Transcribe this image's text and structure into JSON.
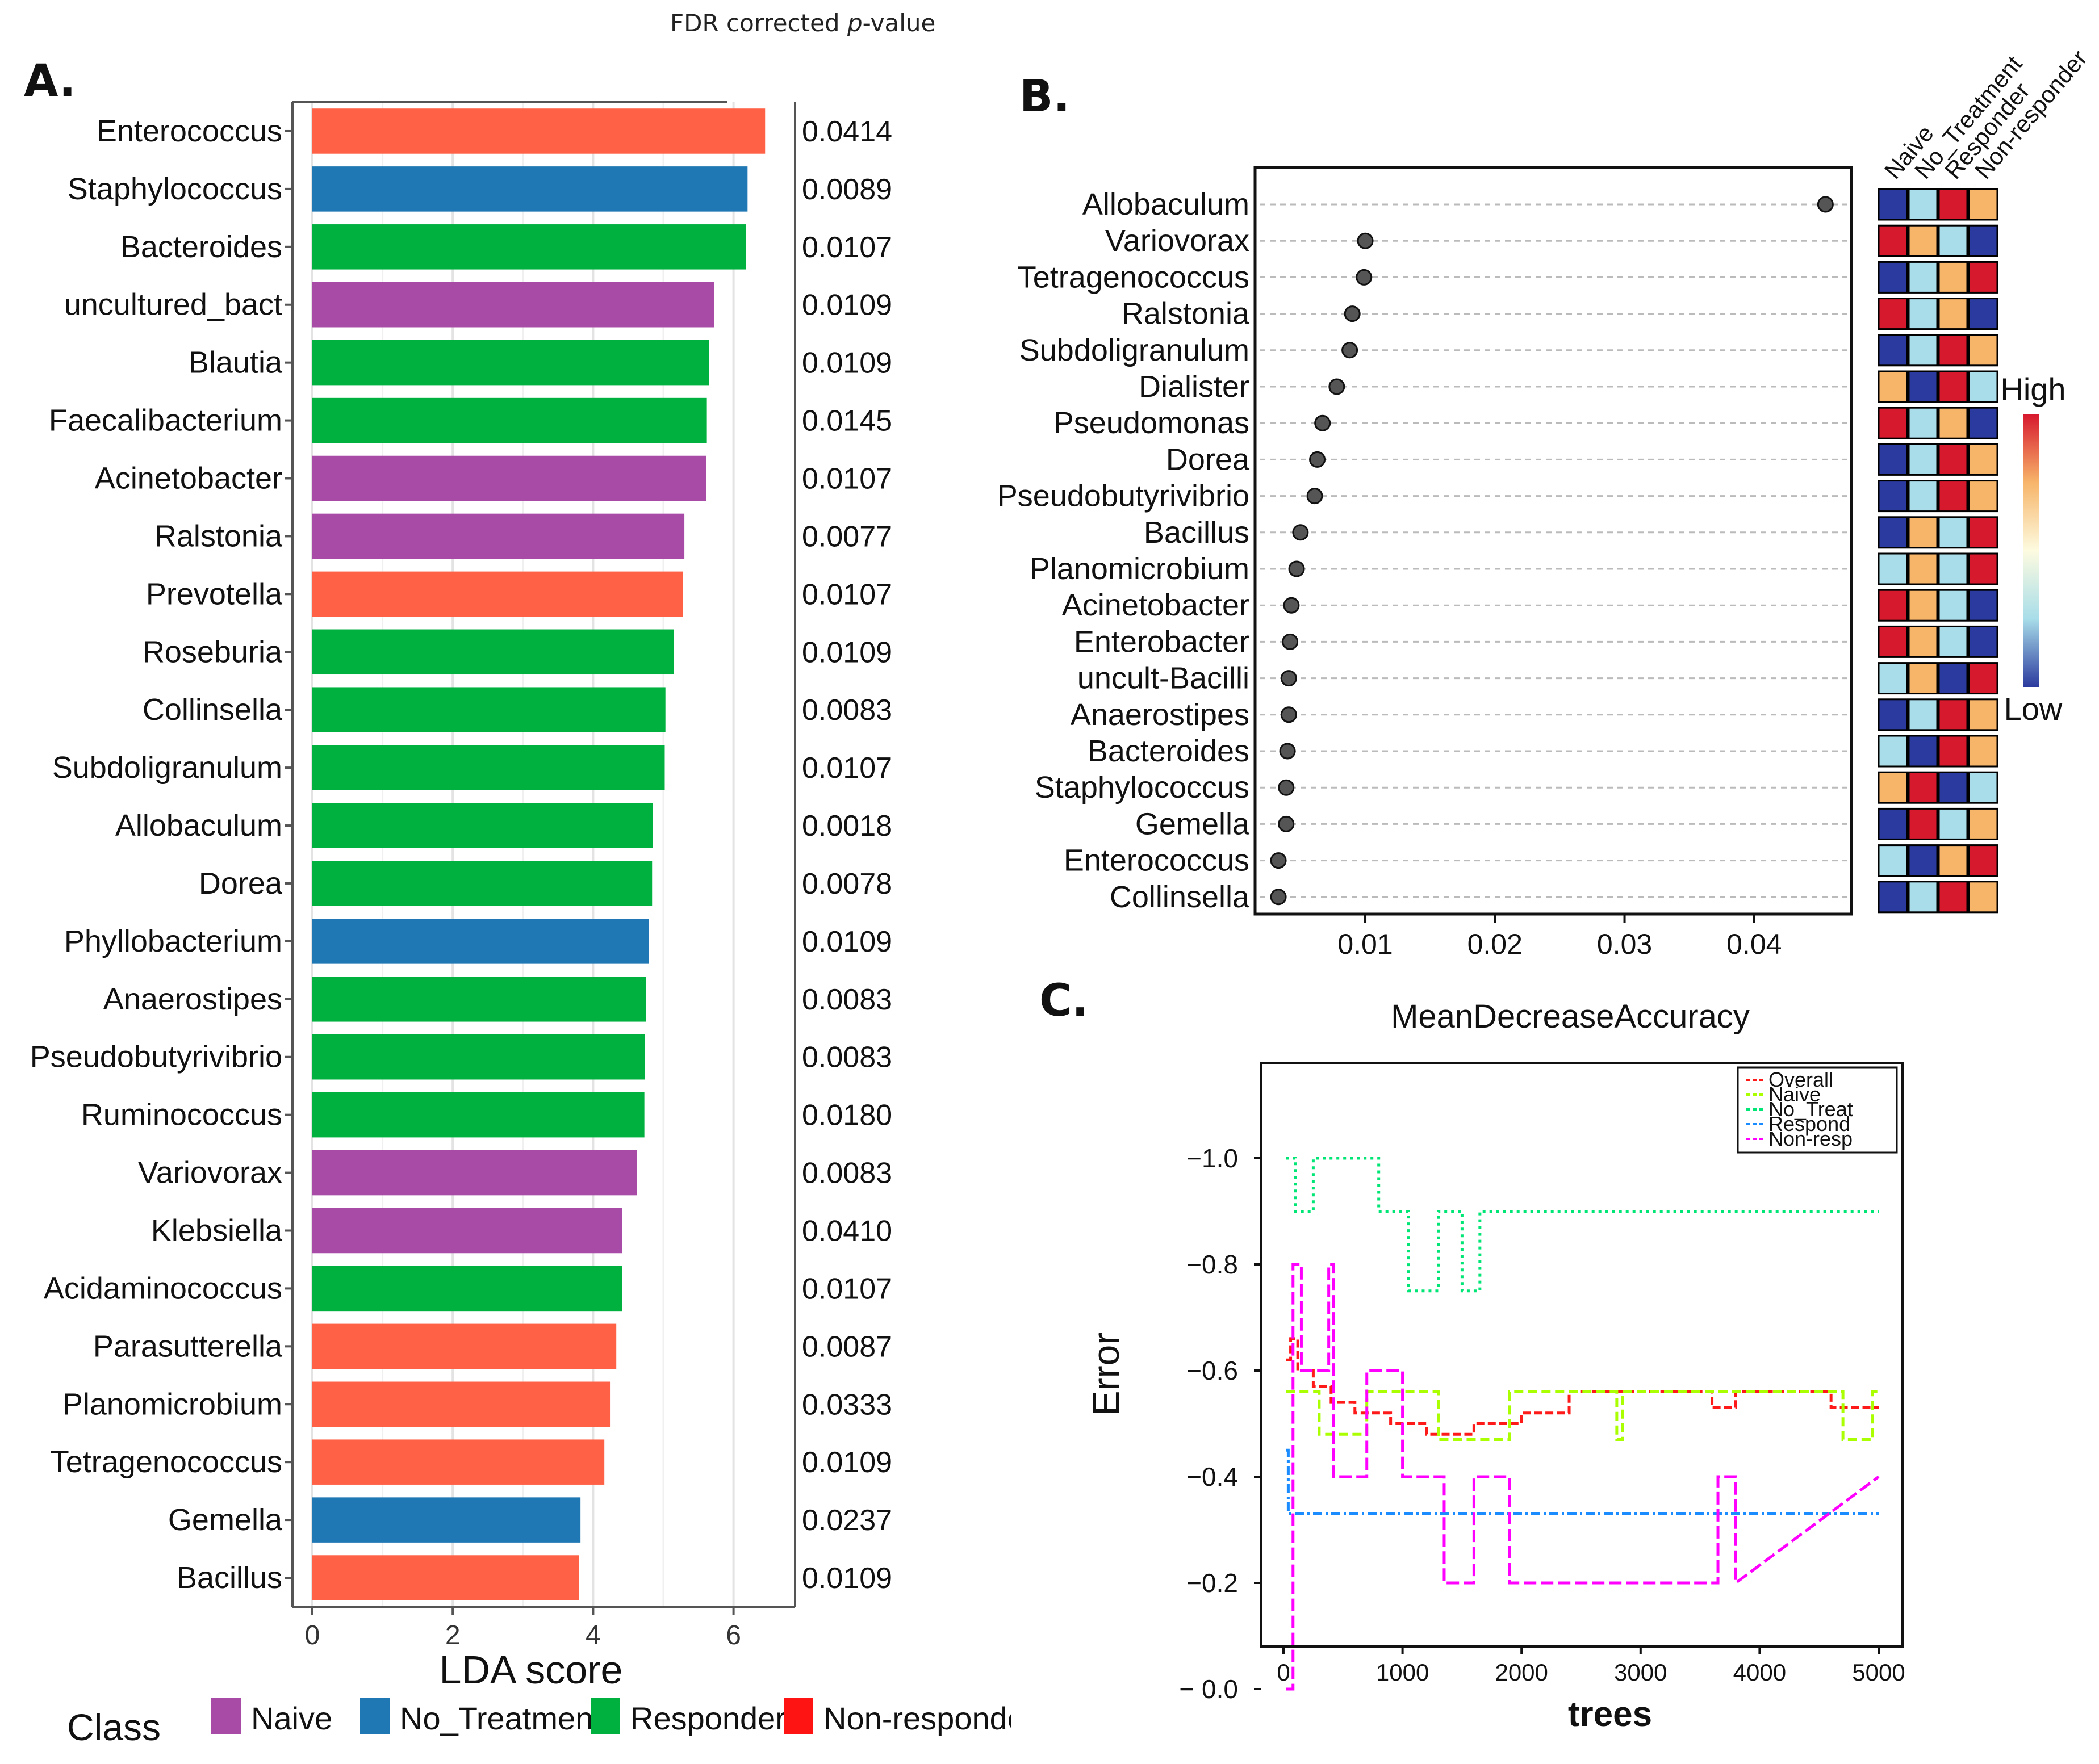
{
  "header": {
    "fdr_title_prefix": "FDR corrected ",
    "fdr_title_italic": "p",
    "fdr_title_suffix": "-value"
  },
  "panels": {
    "a": "A.",
    "b": "B.",
    "c": "C."
  },
  "class_colors": {
    "Naive": "#a84ba7",
    "No_Treatment": "#1f77b4",
    "Responder": "#00b140",
    "Non-responder": "#ff6146"
  },
  "chart_data": [
    {
      "id": "A",
      "type": "bar",
      "orientation": "horizontal",
      "xlabel": "LDA score",
      "xlim": [
        0,
        7
      ],
      "xticks": [
        0,
        2,
        4,
        6
      ],
      "categories": [
        "Enterococcus",
        "Staphylococcus",
        "Bacteroides",
        "uncultured_bact",
        "Blautia",
        "Faecalibacterium",
        "Acinetobacter",
        "Ralstonia",
        "Prevotella",
        "Roseburia",
        "Collinsella",
        "Subdoligranulum",
        "Allobaculum",
        "Dorea",
        "Phyllobacterium",
        "Anaerostipes",
        "Pseudobutyrivibrio",
        "Ruminococcus",
        "Variovorax",
        "Klebsiella",
        "Acidaminococcus",
        "Parasutterella",
        "Planomicrobium",
        "Tetragenococcus",
        "Gemella",
        "Bacillus"
      ],
      "values": [
        6.45,
        6.2,
        6.18,
        5.72,
        5.65,
        5.62,
        5.61,
        5.3,
        5.28,
        5.15,
        5.03,
        5.02,
        4.85,
        4.84,
        4.79,
        4.75,
        4.74,
        4.73,
        4.62,
        4.41,
        4.41,
        4.33,
        4.24,
        4.16,
        3.82,
        3.8
      ],
      "classes": [
        "Non-responder",
        "No_Treatment",
        "Responder",
        "Naive",
        "Responder",
        "Responder",
        "Naive",
        "Naive",
        "Non-responder",
        "Responder",
        "Responder",
        "Responder",
        "Responder",
        "Responder",
        "No_Treatment",
        "Responder",
        "Responder",
        "Responder",
        "Naive",
        "Naive",
        "Responder",
        "Non-responder",
        "Non-responder",
        "Non-responder",
        "No_Treatment",
        "Non-responder"
      ],
      "fdr_pvalues": [
        "0.0414",
        "0.0089",
        "0.0107",
        "0.0109",
        "0.0109",
        "0.0145",
        "0.0107",
        "0.0077",
        "0.0107",
        "0.0109",
        "0.0083",
        "0.0107",
        "0.0018",
        "0.0078",
        "0.0109",
        "0.0083",
        "0.0083",
        "0.0180",
        "0.0083",
        "0.0410",
        "0.0107",
        "0.0087",
        "0.0333",
        "0.0109",
        "0.0237",
        "0.0109"
      ],
      "legend": {
        "title": "Class",
        "items": [
          "Naive",
          "No_Treatment",
          "Responder",
          "Non-responder"
        ]
      }
    },
    {
      "id": "B",
      "type": "scatter",
      "subtype": "dotplot",
      "xlabel": "MeanDecreaseAccuracy",
      "xlim": [
        0.0015,
        0.0475
      ],
      "xticks": [
        "0.01",
        "0.02",
        "0.03",
        "0.04"
      ],
      "xtick_values": [
        0.01,
        0.02,
        0.03,
        0.04
      ],
      "categories": [
        "Allobaculum",
        "Variovorax",
        "Tetragenococcus",
        "Ralstonia",
        "Subdoligranulum",
        "Dialister",
        "Pseudomonas",
        "Dorea",
        "Pseudobutyrivibrio",
        "Bacillus",
        "Planomicrobium",
        "Acinetobacter",
        "Enterobacter",
        "uncult-Bacilli",
        "Anaerostipes",
        "Bacteroides",
        "Staphylococcus",
        "Gemella",
        "Enterococcus",
        "Collinsella"
      ],
      "values": [
        0.0455,
        0.01,
        0.0099,
        0.009,
        0.0088,
        0.0078,
        0.0067,
        0.0063,
        0.0061,
        0.005,
        0.0047,
        0.0043,
        0.0042,
        0.0041,
        0.0041,
        0.004,
        0.0039,
        0.0039,
        0.0033,
        0.0033
      ],
      "heatmap": {
        "columns": [
          "Naive",
          "No_Treatment",
          "Responder",
          "Non-responder"
        ],
        "levels": {
          "1": "#2b3a9e",
          "2": "#a8dde9",
          "3": "#f7b56a",
          "4": "#d7192e"
        },
        "rows": [
          [
            1,
            2,
            4,
            3
          ],
          [
            4,
            3,
            2,
            1
          ],
          [
            1,
            2,
            3,
            4
          ],
          [
            4,
            2,
            3,
            1
          ],
          [
            1,
            2,
            4,
            3
          ],
          [
            3,
            1,
            4,
            2
          ],
          [
            4,
            2,
            3,
            1
          ],
          [
            1,
            2,
            4,
            3
          ],
          [
            1,
            2,
            4,
            3
          ],
          [
            1,
            3,
            2,
            4
          ],
          [
            2,
            3,
            2,
            4
          ],
          [
            4,
            3,
            2,
            1
          ],
          [
            4,
            3,
            2,
            1
          ],
          [
            2,
            3,
            1,
            4
          ],
          [
            1,
            2,
            4,
            3
          ],
          [
            2,
            1,
            4,
            3
          ],
          [
            3,
            4,
            1,
            2
          ],
          [
            1,
            4,
            2,
            3
          ],
          [
            2,
            1,
            3,
            4
          ],
          [
            1,
            2,
            4,
            3
          ]
        ],
        "colorbar_high": "High",
        "colorbar_low": "Low"
      }
    },
    {
      "id": "C",
      "type": "line",
      "xlabel": "trees",
      "ylabel": "Error",
      "xlim": [
        0,
        5000
      ],
      "ylim": [
        0.0,
        1.0
      ],
      "xticks": [
        "0",
        "1000",
        "2000",
        "3000",
        "4000",
        "5000"
      ],
      "yticks": [
        "−1.0",
        "−0.8",
        "−0.6",
        "−0.4",
        "−0.2",
        "− 0.0"
      ],
      "ytick_values": [
        1.0,
        0.8,
        0.6,
        0.4,
        0.2,
        0.0
      ],
      "legend": [
        "Overall",
        "Naive",
        "No_Treat",
        "Respond",
        "Non-resp"
      ],
      "series": [
        {
          "name": "Overall",
          "color": "#ff1a1a",
          "dash": "14 6",
          "x": [
            20,
            60,
            60,
            120,
            120,
            250,
            250,
            400,
            400,
            600,
            600,
            900,
            900,
            1200,
            1200,
            1600,
            1600,
            2000,
            2000,
            2400,
            2400,
            3000,
            3000,
            3600,
            3600,
            3800,
            3800,
            4600,
            4600,
            5000
          ],
          "y": [
            0.62,
            0.62,
            0.66,
            0.66,
            0.6,
            0.6,
            0.57,
            0.57,
            0.54,
            0.54,
            0.52,
            0.52,
            0.5,
            0.5,
            0.48,
            0.48,
            0.5,
            0.5,
            0.52,
            0.52,
            0.56,
            0.56,
            0.56,
            0.56,
            0.53,
            0.53,
            0.56,
            0.56,
            0.53,
            0.53
          ]
        },
        {
          "name": "Naive",
          "color": "#aaff00",
          "dash": "16 8",
          "x": [
            20,
            300,
            300,
            700,
            700,
            1300,
            1300,
            1900,
            1900,
            2800,
            2800,
            2850,
            2850,
            4700,
            4700,
            4950,
            4950,
            5000
          ],
          "y": [
            0.56,
            0.56,
            0.48,
            0.48,
            0.56,
            0.56,
            0.47,
            0.47,
            0.56,
            0.56,
            0.47,
            0.47,
            0.56,
            0.56,
            0.47,
            0.47,
            0.56,
            0.56
          ]
        },
        {
          "name": "No_Treat",
          "color": "#00e676",
          "dash": "5 7",
          "x": [
            20,
            100,
            100,
            250,
            250,
            800,
            800,
            1050,
            1050,
            1300,
            1300,
            1500,
            1500,
            1650,
            1650,
            1950,
            1950,
            5000
          ],
          "y": [
            1.0,
            1.0,
            0.9,
            0.9,
            1.0,
            1.0,
            0.9,
            0.9,
            0.75,
            0.75,
            0.9,
            0.9,
            0.75,
            0.75,
            0.9,
            0.9,
            0.9,
            0.9
          ]
        },
        {
          "name": "Respond",
          "color": "#1a8cff",
          "dash": "16 6 4 6",
          "x": [
            20,
            40,
            40,
            5000
          ],
          "y": [
            0.45,
            0.45,
            0.33,
            0.33
          ]
        },
        {
          "name": "Non-resp",
          "color": "#ff00ff",
          "dash": "22 8",
          "x": [
            20,
            80,
            80,
            150,
            150,
            380,
            380,
            420,
            420,
            700,
            700,
            1000,
            1000,
            1350,
            1350,
            1600,
            1600,
            1900,
            1900,
            3650,
            3650,
            3800,
            3800,
            5000
          ],
          "y": [
            0.0,
            0.0,
            0.8,
            0.8,
            0.6,
            0.6,
            0.8,
            0.8,
            0.4,
            0.4,
            0.6,
            0.6,
            0.4,
            0.4,
            0.2,
            0.2,
            0.4,
            0.4,
            0.2,
            0.2,
            0.4,
            0.4,
            0.2,
            0.4
          ]
        }
      ]
    }
  ]
}
